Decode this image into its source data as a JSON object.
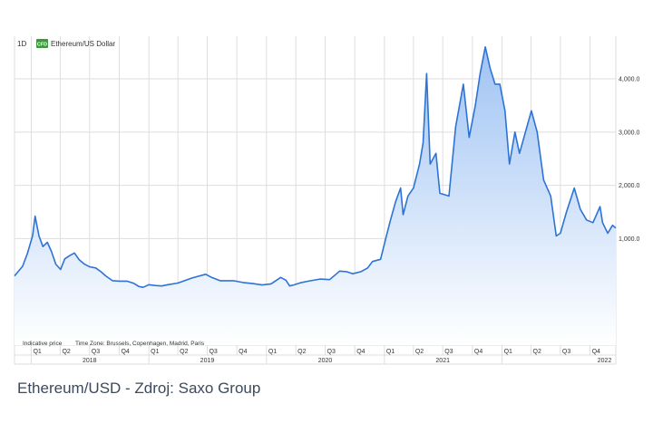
{
  "caption": "Ethereum/USD - Zdroj: Saxo Group",
  "colors": {
    "line": "#2d73d6",
    "fill_top": "#9fc3f3",
    "fill_bottom": "#ffffff",
    "grid": "#dedede",
    "legend_badge": "#3a9a3a"
  },
  "chart_data": {
    "type": "area",
    "period_label": "1D",
    "legend": {
      "badge": "CFD",
      "label": "Ethereum/US Dollar",
      "position": "top-left"
    },
    "y_ticks": [
      1000,
      2000,
      3000,
      4000
    ],
    "y_tick_labels": [
      "1,000.0",
      "2,000.0",
      "3,000.0",
      "4,000.0"
    ],
    "ylim": [
      -1000,
      4800
    ],
    "y_axis_position": "right",
    "grid": true,
    "x_range": [
      "2017-11-10",
      "2022-12-20"
    ],
    "quarter_ticks": [
      {
        "date": "2018-01-01",
        "label": "Q1"
      },
      {
        "date": "2018-04-01",
        "label": "Q2"
      },
      {
        "date": "2018-07-01",
        "label": "Q3"
      },
      {
        "date": "2018-10-01",
        "label": "Q4"
      },
      {
        "date": "2019-01-01",
        "label": "Q1"
      },
      {
        "date": "2019-04-01",
        "label": "Q2"
      },
      {
        "date": "2019-07-01",
        "label": "Q3"
      },
      {
        "date": "2019-10-01",
        "label": "Q4"
      },
      {
        "date": "2020-01-01",
        "label": "Q1"
      },
      {
        "date": "2020-04-01",
        "label": "Q2"
      },
      {
        "date": "2020-07-01",
        "label": "Q3"
      },
      {
        "date": "2020-10-01",
        "label": "Q4"
      },
      {
        "date": "2021-01-01",
        "label": "Q1"
      },
      {
        "date": "2021-04-01",
        "label": "Q2"
      },
      {
        "date": "2021-07-01",
        "label": "Q3"
      },
      {
        "date": "2021-10-01",
        "label": "Q4"
      },
      {
        "date": "2022-01-01",
        "label": "Q1"
      },
      {
        "date": "2022-04-01",
        "label": "Q2"
      },
      {
        "date": "2022-07-01",
        "label": "Q3"
      },
      {
        "date": "2022-10-01",
        "label": "Q4"
      }
    ],
    "years": [
      {
        "label": "2018",
        "date": "2018-07-01"
      },
      {
        "label": "2019",
        "date": "2019-07-01"
      },
      {
        "label": "2020",
        "date": "2020-07-01"
      },
      {
        "label": "2021",
        "date": "2021-07-01"
      },
      {
        "label": "2022",
        "date": "2022-11-15"
      }
    ],
    "notes": [
      "Indicative price",
      "Time Zone: Brussels, Copenhagen, Madrid, Paris"
    ],
    "series": [
      {
        "x": [
          "2017-11-10",
          "2017-12-05",
          "2017-12-20",
          "2018-01-05",
          "2018-01-13",
          "2018-01-25",
          "2018-02-06",
          "2018-02-20",
          "2018-03-05",
          "2018-03-18",
          "2018-04-02",
          "2018-04-15",
          "2018-04-30",
          "2018-05-15",
          "2018-05-30",
          "2018-06-15",
          "2018-07-01",
          "2018-07-20",
          "2018-08-05",
          "2018-08-20",
          "2018-09-10",
          "2018-10-01",
          "2018-10-25",
          "2018-11-15",
          "2018-12-01",
          "2018-12-14",
          "2019-01-01",
          "2019-01-20",
          "2019-02-10",
          "2019-03-01",
          "2019-04-01",
          "2019-05-15",
          "2019-06-26",
          "2019-07-15",
          "2019-08-10",
          "2019-09-20",
          "2019-10-20",
          "2019-11-20",
          "2019-12-18",
          "2020-01-15",
          "2020-02-14",
          "2020-03-01",
          "2020-03-13",
          "2020-03-25",
          "2020-04-15",
          "2020-05-10",
          "2020-06-15",
          "2020-07-15",
          "2020-08-15",
          "2020-09-05",
          "2020-09-25",
          "2020-10-20",
          "2020-11-10",
          "2020-11-25",
          "2020-12-20",
          "2021-01-05",
          "2021-01-20",
          "2021-02-05",
          "2021-02-20",
          "2021-02-28",
          "2021-03-15",
          "2021-04-01",
          "2021-04-20",
          "2021-05-01",
          "2021-05-12",
          "2021-05-23",
          "2021-06-10",
          "2021-06-22",
          "2021-07-20",
          "2021-08-10",
          "2021-09-03",
          "2021-09-21",
          "2021-10-10",
          "2021-10-25",
          "2021-11-10",
          "2021-11-25",
          "2021-12-10",
          "2021-12-25",
          "2022-01-10",
          "2022-01-24",
          "2022-02-10",
          "2022-02-24",
          "2022-03-10",
          "2022-04-02",
          "2022-04-20",
          "2022-05-10",
          "2022-06-01",
          "2022-06-18",
          "2022-07-01",
          "2022-07-20",
          "2022-08-13",
          "2022-09-01",
          "2022-09-20",
          "2022-10-10",
          "2022-11-01",
          "2022-11-09",
          "2022-11-25",
          "2022-12-10",
          "2022-12-20"
        ],
        "y": [
          300,
          480,
          720,
          1050,
          1420,
          1050,
          850,
          930,
          750,
          520,
          420,
          620,
          680,
          730,
          600,
          520,
          470,
          450,
          380,
          300,
          210,
          200,
          200,
          160,
          100,
          85,
          135,
          120,
          110,
          135,
          165,
          260,
          330,
          270,
          210,
          210,
          175,
          155,
          130,
          150,
          270,
          220,
          110,
          130,
          170,
          200,
          240,
          230,
          390,
          380,
          340,
          380,
          450,
          570,
          610,
          1000,
          1350,
          1700,
          1950,
          1450,
          1800,
          1950,
          2400,
          2800,
          4100,
          2400,
          2600,
          1850,
          1800,
          3100,
          3900,
          2900,
          3500,
          4100,
          4600,
          4200,
          3900,
          3900,
          3400,
          2400,
          3000,
          2600,
          2900,
          3400,
          3000,
          2100,
          1800,
          1050,
          1100,
          1500,
          1950,
          1550,
          1350,
          1300,
          1600,
          1300,
          1100,
          1250,
          1200
        ]
      }
    ]
  }
}
